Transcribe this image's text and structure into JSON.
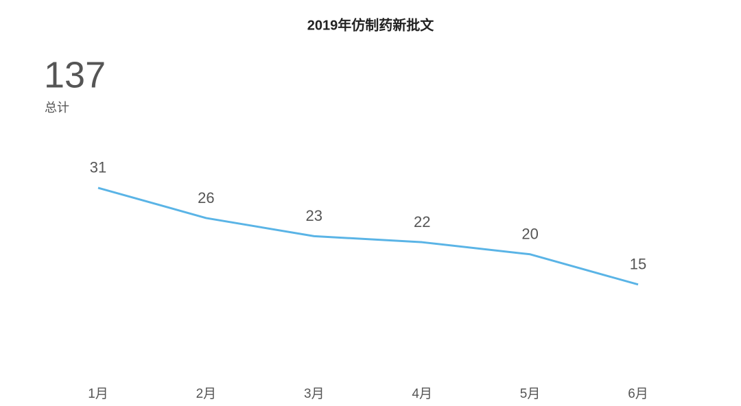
{
  "chart_data": {
    "type": "line",
    "title": "2019年仿制药新批文",
    "total": 137,
    "total_label": "总计",
    "categories": [
      "1月",
      "2月",
      "3月",
      "4月",
      "5月",
      "6月"
    ],
    "series": [
      {
        "color": "#5ab4e6",
        "values": [
          31,
          26,
          23,
          22,
          20,
          15
        ]
      }
    ]
  }
}
